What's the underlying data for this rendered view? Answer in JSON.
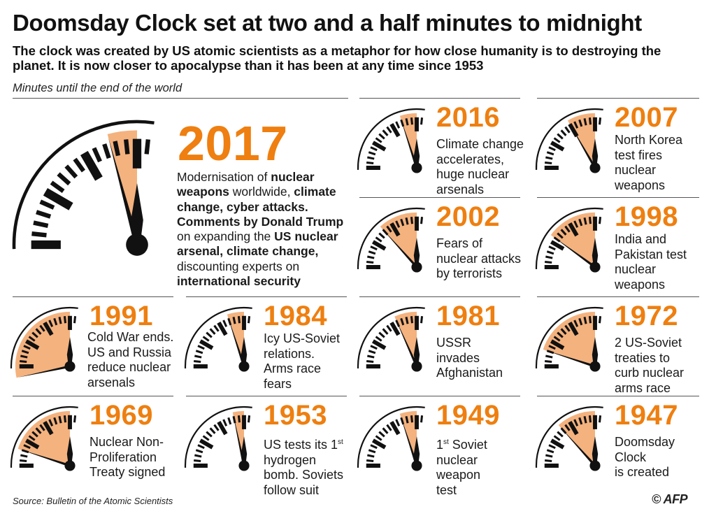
{
  "header": {
    "title": "Doomsday Clock  set at two and a half minutes to midnight",
    "subtitle": "The clock was created by US atomic scientists as a metaphor for how close humanity is to destroying the planet. It is now closer to apocalypse than it has been at any time since 1953",
    "minutes_label": "Minutes until the end of the world"
  },
  "colors": {
    "accent": "#ee7f10",
    "wedge": "#f4b27e",
    "ink": "#111111"
  },
  "clocks": [
    {
      "year": "2017",
      "minutes": 2.5,
      "desc_parts": [
        {
          "t": "Modernisation of "
        },
        {
          "t": "nuclear weapons",
          "b": true
        },
        {
          "t": " worldwide, "
        },
        {
          "t": "climate change, cyber attacks.",
          "b": true
        },
        {
          "t": " "
        },
        {
          "t": "Comments by Donald Trump",
          "b": true
        },
        {
          "t": " on expanding the "
        },
        {
          "t": "US nuclear arsenal, climate change,",
          "b": true
        },
        {
          "t": " discounting experts on "
        },
        {
          "t": "international security",
          "b": true
        }
      ]
    },
    {
      "year": "2016",
      "minutes": 3,
      "desc": [
        "Climate change",
        "accelerates,",
        "huge nuclear",
        "arsenals"
      ]
    },
    {
      "year": "2007",
      "minutes": 5,
      "desc": [
        "North Korea",
        "test fires",
        "nuclear",
        "weapons"
      ]
    },
    {
      "year": "2002",
      "minutes": 7,
      "desc": [
        "Fears of",
        "nuclear attacks",
        "by terrorists"
      ]
    },
    {
      "year": "1998",
      "minutes": 9,
      "desc": [
        "India and",
        "Pakistan test",
        "nuclear",
        "weapons"
      ]
    },
    {
      "year": "1991",
      "minutes": 17,
      "desc": [
        "Cold War ends.",
        "US and Russia",
        "reduce nuclear",
        "arsenals"
      ]
    },
    {
      "year": "1984",
      "minutes": 3,
      "desc": [
        "Icy US-Soviet",
        "relations.",
        "Arms race",
        "fears"
      ]
    },
    {
      "year": "1981",
      "minutes": 4,
      "desc": [
        "USSR",
        "invades",
        "Afghanistan"
      ]
    },
    {
      "year": "1972",
      "minutes": 12,
      "desc": [
        "2 US-Soviet",
        "treaties to",
        "curb nuclear",
        "arms race"
      ]
    },
    {
      "year": "1969",
      "minutes": 12,
      "desc": [
        "Nuclear Non-",
        "Proliferation",
        "Treaty signed"
      ]
    },
    {
      "year": "1953",
      "minutes": 2,
      "desc_html": "US tests its 1<sup>st</sup><br>hydrogen<br>bomb. Soviets<br>follow suit"
    },
    {
      "year": "1949",
      "minutes": 3,
      "desc_html": "1<sup>st</sup> Soviet<br>nuclear<br>weapon<br>test"
    },
    {
      "year": "1947",
      "minutes": 7,
      "desc": [
        "Doomsday",
        "Clock",
        "is created"
      ]
    }
  ],
  "footer": {
    "source": "Source: Bulletin of the Atomic Scientists",
    "credit": "© AFP"
  }
}
